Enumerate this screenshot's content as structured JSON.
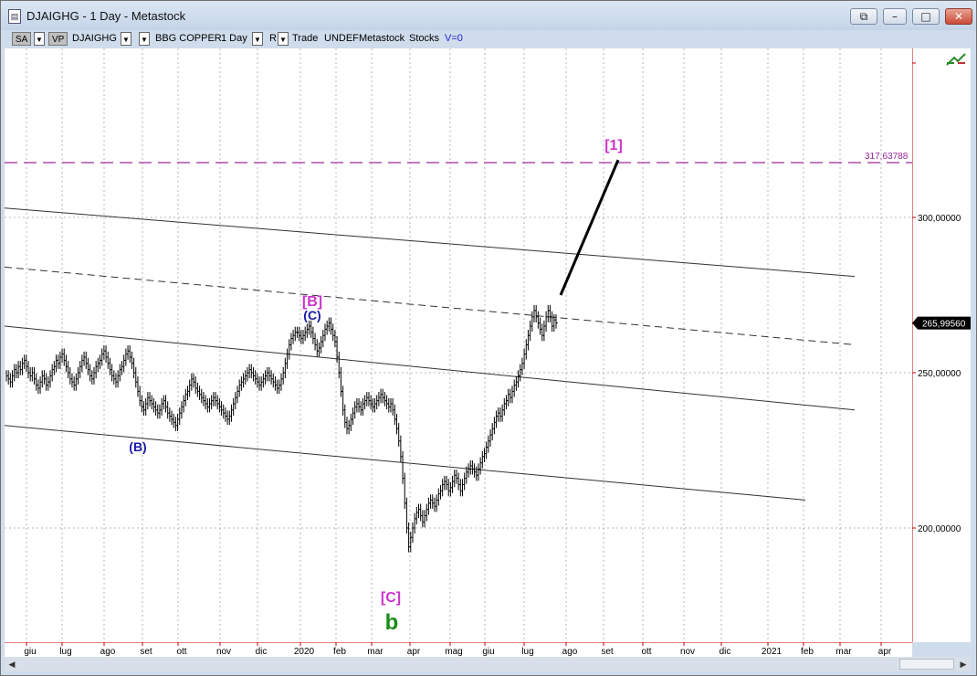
{
  "window": {
    "title": "DJAIGHG - 1 Day - Metastock",
    "icon": "chart-document-icon"
  },
  "toolbar": {
    "sa_label": "SA",
    "vp_label": "VP",
    "symbol": "DJAIGHG",
    "name": "BBG COPPER",
    "period": "1 Day",
    "r_label": "R",
    "trade": "Trade",
    "undef": "UNDEF",
    "source": "Metastock",
    "stocks": "Stocks",
    "volume": "V=0"
  },
  "colors": {
    "magenta": "#cc33cc",
    "blue": "#1a1aa6",
    "green": "#1a8c1a",
    "axis": "#c00000"
  },
  "chart_data": {
    "type": "bar",
    "y_axis": {
      "ticks": [
        "300,00000",
        "250,00000",
        "200,00000"
      ],
      "tick_values": [
        300,
        250,
        200
      ]
    },
    "x_axis": {
      "labels": [
        "giu",
        "lug",
        "ago",
        "set",
        "ott",
        "nov",
        "dic",
        "2020",
        "feb",
        "mar",
        "apr",
        "mag",
        "giu",
        "lug",
        "ago",
        "set",
        "ott",
        "nov",
        "dic",
        "2021",
        "feb",
        "mar",
        "apr"
      ]
    },
    "last_price": "265,99560",
    "target": {
      "label": "317,63788",
      "value": 317.63788
    },
    "wave_labels": [
      {
        "text": "[B]",
        "color": "magenta"
      },
      {
        "text": "(C)",
        "color": "blue"
      },
      {
        "text": "(B)",
        "color": "blue"
      },
      {
        "text": "[C]",
        "color": "magenta"
      },
      {
        "text": "b",
        "color": "green"
      },
      {
        "text": "[1]",
        "color": "magenta"
      }
    ],
    "series_close": [
      249,
      248,
      247,
      249,
      251,
      250,
      252,
      251,
      253,
      254,
      252,
      250,
      249,
      250,
      248,
      246,
      245,
      247,
      249,
      248,
      246,
      247,
      249,
      251,
      252,
      254,
      253,
      255,
      256,
      254,
      252,
      250,
      248,
      247,
      246,
      248,
      250,
      252,
      254,
      255,
      253,
      251,
      249,
      248,
      250,
      252,
      253,
      254,
      256,
      257,
      255,
      253,
      251,
      249,
      248,
      247,
      249,
      251,
      252,
      254,
      256,
      257,
      255,
      253,
      250,
      247,
      244,
      241,
      239,
      238,
      240,
      242,
      241,
      240,
      239,
      238,
      237,
      238,
      240,
      241,
      239,
      237,
      236,
      235,
      234,
      233,
      235,
      237,
      239,
      241,
      243,
      244,
      246,
      248,
      247,
      245,
      244,
      243,
      242,
      241,
      240,
      239,
      240,
      241,
      242,
      241,
      240,
      239,
      238,
      237,
      236,
      235,
      236,
      238,
      240,
      242,
      244,
      246,
      247,
      248,
      249,
      250,
      251,
      250,
      249,
      248,
      247,
      246,
      247,
      248,
      249,
      250,
      249,
      248,
      247,
      246,
      245,
      246,
      248,
      250,
      253,
      256,
      259,
      261,
      262,
      263,
      263,
      262,
      261,
      262,
      263,
      264,
      265,
      263,
      261,
      259,
      257,
      258,
      260,
      262,
      264,
      265,
      266,
      264,
      262,
      260,
      255,
      250,
      244,
      238,
      234,
      232,
      233,
      235,
      237,
      239,
      240,
      239,
      238,
      240,
      241,
      242,
      241,
      240,
      239,
      240,
      241,
      242,
      243,
      242,
      241,
      240,
      239,
      240,
      238,
      235,
      232,
      228,
      223,
      216,
      208,
      200,
      194,
      197,
      200,
      203,
      205,
      206,
      204,
      202,
      204,
      206,
      208,
      209,
      208,
      207,
      209,
      211,
      212,
      214,
      215,
      214,
      212,
      213,
      215,
      217,
      216,
      214,
      212,
      214,
      216,
      218,
      219,
      220,
      219,
      218,
      217,
      219,
      221,
      223,
      224,
      226,
      228,
      230,
      232,
      234,
      236,
      237,
      236,
      238,
      240,
      241,
      243,
      242,
      244,
      246,
      247,
      249,
      251,
      253,
      256,
      259,
      262,
      265,
      268,
      270,
      268,
      266,
      264,
      262,
      265,
      268,
      270,
      268,
      265,
      267,
      266
    ],
    "channel_lines": [
      {
        "style": "solid",
        "y_start": 303,
        "y_end": 281
      },
      {
        "style": "dashed",
        "y_start": 284,
        "y_end": 259
      },
      {
        "style": "solid",
        "y_start": 265,
        "y_end": 238
      },
      {
        "style": "solid",
        "y_start": 233,
        "y_end": 209
      }
    ]
  }
}
